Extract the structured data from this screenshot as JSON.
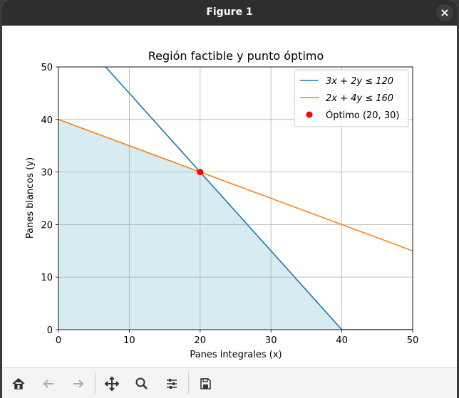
{
  "window": {
    "title": "Figure 1"
  },
  "toolbar": {
    "buttons": [
      "home-icon",
      "back-arrow-icon",
      "forward-arrow-icon",
      "pan-icon",
      "zoom-icon",
      "configure-subplots-icon",
      "save-icon"
    ]
  },
  "chart_data": {
    "type": "line",
    "title": "Región factible y punto óptimo",
    "xlabel": "Panes integrales (x)",
    "ylabel": "Panes blancos (y)",
    "xlim": [
      0,
      50
    ],
    "ylim": [
      0,
      50
    ],
    "xticks": [
      "0",
      "10",
      "20",
      "30",
      "40",
      "50"
    ],
    "yticks": [
      "0",
      "10",
      "20",
      "30",
      "40",
      "50"
    ],
    "grid": true,
    "legend_position": "upper right",
    "series": [
      {
        "name": "3x + 2y ≤ 120",
        "color": "#1f77b4",
        "x": [
          0,
          40,
          50
        ],
        "y": [
          60,
          0,
          0
        ]
      },
      {
        "name": "2x + 4y ≤ 160",
        "color": "#ff7f0e",
        "x": [
          0,
          50
        ],
        "y": [
          40,
          15
        ]
      }
    ],
    "feasible_region": {
      "color": "#add8e6",
      "opacity": 0.5,
      "x": [
        0,
        0,
        20,
        40
      ],
      "y": [
        0,
        40,
        30,
        0
      ]
    },
    "optimum": {
      "label": "Óptimo (20, 30)",
      "x": 20,
      "y": 30,
      "color": "#ff0000"
    }
  }
}
